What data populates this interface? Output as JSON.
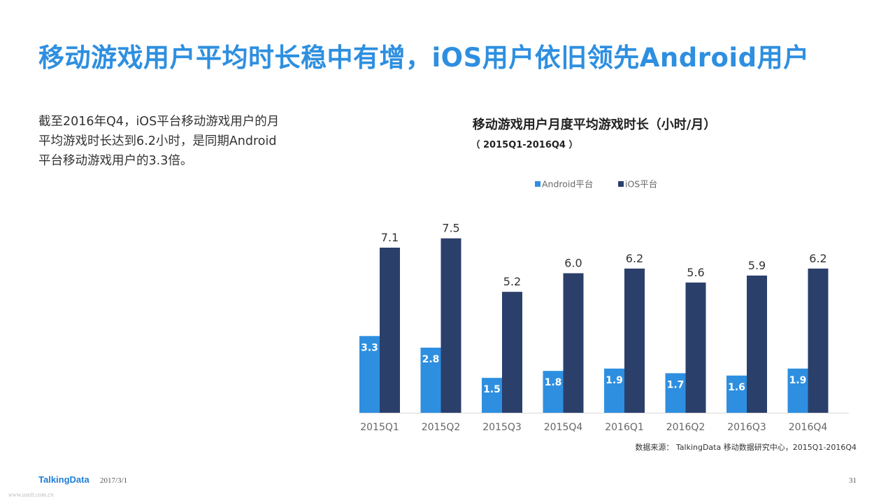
{
  "slide": {
    "title": "移动游戏用户平均时长稳中有增，iOS用户依旧领先Android用户",
    "description_lines": [
      "截至2016年Q4，iOS平台移动游戏用户的月",
      "平均游戏时长达到6.2小时，是同期Android",
      "平台移动游戏用户的3.3倍。"
    ]
  },
  "chart_data": {
    "type": "bar",
    "title": "移动游戏用户月度平均游戏时长（小时/月）",
    "subtitle": "（ 2015Q1-2016Q4 ）",
    "categories": [
      "2015Q1",
      "2015Q2",
      "2015Q3",
      "2015Q4",
      "2016Q1",
      "2016Q2",
      "2016Q3",
      "2016Q4"
    ],
    "series": [
      {
        "name": "Android平台",
        "color": "#2e8fe0",
        "values": [
          3.3,
          2.8,
          1.5,
          1.8,
          1.9,
          1.7,
          1.6,
          1.9
        ]
      },
      {
        "name": "iOS平台",
        "color": "#2b3f6b",
        "values": [
          7.1,
          7.5,
          5.2,
          6.0,
          6.2,
          5.6,
          5.9,
          6.2
        ]
      }
    ],
    "ylim": [
      0,
      8
    ],
    "grid": false,
    "legend_position": "top",
    "android_labels_inside": true
  },
  "footer": {
    "source": "数据来源： TalkingData 移动数据研究中心，2015Q1-2016Q4",
    "logo_text": "TalkingData",
    "date": "2017/3/1",
    "page_number": "31",
    "watermark": "www.useit.com.cn"
  }
}
